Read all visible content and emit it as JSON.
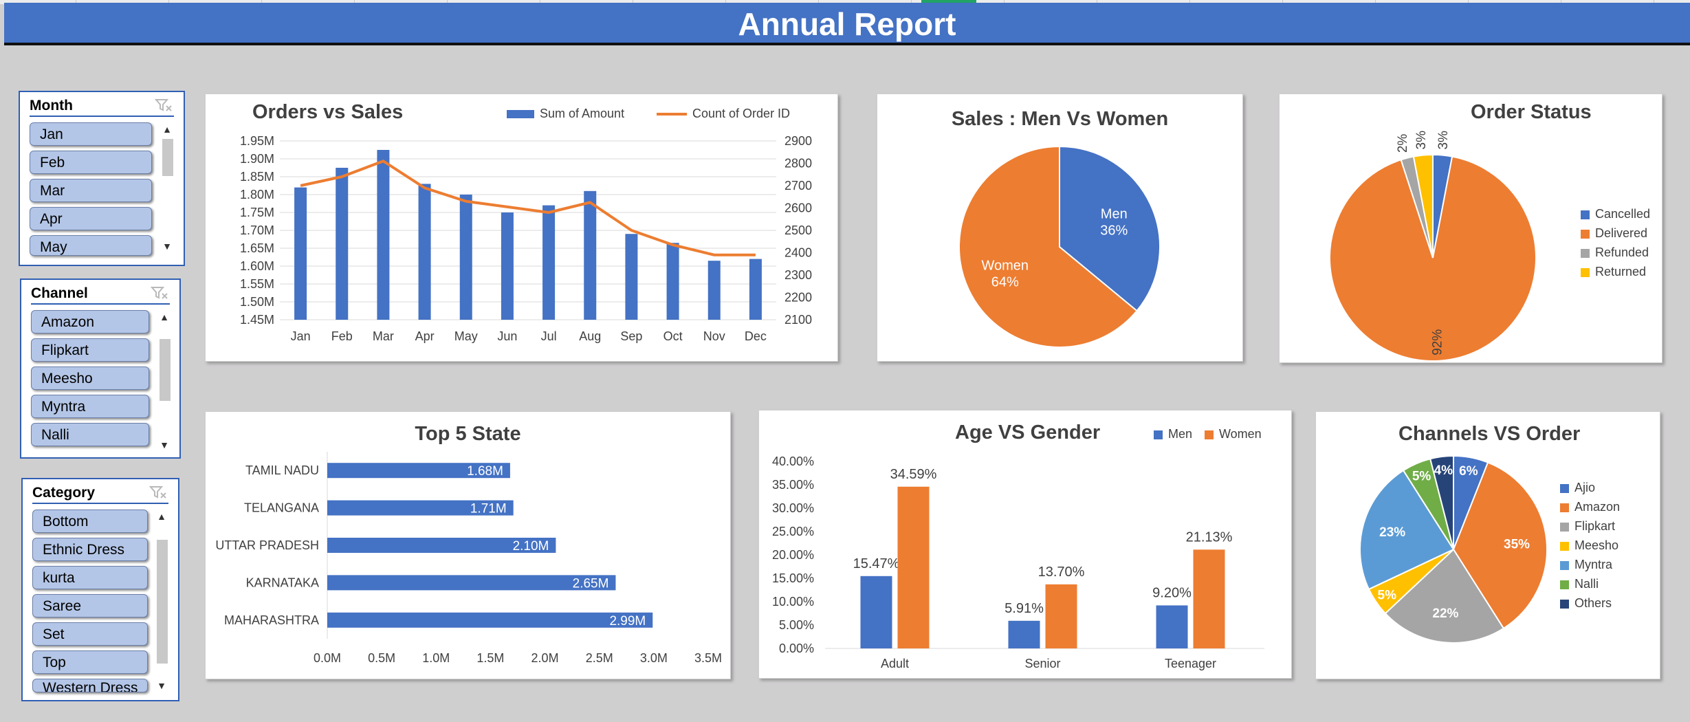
{
  "title": "Annual Report",
  "slicers": {
    "month": {
      "title": "Month",
      "items": [
        "Jan",
        "Feb",
        "Mar",
        "Apr",
        "May"
      ]
    },
    "channel": {
      "title": "Channel",
      "items": [
        "Amazon",
        "Flipkart",
        "Meesho",
        "Myntra",
        "Nalli"
      ]
    },
    "category": {
      "title": "Category",
      "items": [
        "Bottom",
        "Ethnic Dress",
        "kurta",
        "Saree",
        "Set",
        "Top",
        "Western Dress"
      ]
    }
  },
  "colors": {
    "blue": "#4472c4",
    "orange": "#ed7d31",
    "gray": "#a5a5a5",
    "gold": "#ffc000",
    "lightblue": "#5b9bd5",
    "green": "#70ad47",
    "navy": "#264478",
    "header": "#4472c4",
    "slicer_item": "#b4c6e7"
  },
  "chart_data": [
    {
      "id": "orders_vs_sales",
      "type": "bar",
      "title": "Orders vs Sales",
      "categories": [
        "Jan",
        "Feb",
        "Mar",
        "Apr",
        "May",
        "Jun",
        "Jul",
        "Aug",
        "Sep",
        "Oct",
        "Nov",
        "Dec"
      ],
      "series": [
        {
          "name": "Sum of Amount",
          "type": "bar",
          "axis": "left",
          "values": [
            1.82,
            1.875,
            1.925,
            1.83,
            1.8,
            1.75,
            1.77,
            1.81,
            1.69,
            1.665,
            1.615,
            1.62
          ]
        },
        {
          "name": "Count of Order ID",
          "type": "line",
          "axis": "right",
          "values": [
            2700,
            2740,
            2810,
            2690,
            2630,
            2605,
            2580,
            2625,
            2500,
            2435,
            2390,
            2390
          ]
        }
      ],
      "y_left": {
        "min": 1.45,
        "max": 1.95,
        "ticks": [
          "1.45M",
          "1.50M",
          "1.55M",
          "1.60M",
          "1.65M",
          "1.70M",
          "1.75M",
          "1.80M",
          "1.85M",
          "1.90M",
          "1.95M"
        ]
      },
      "y_right": {
        "min": 2100,
        "max": 2900,
        "ticks": [
          "2100",
          "2200",
          "2300",
          "2400",
          "2500",
          "2600",
          "2700",
          "2800",
          "2900"
        ]
      },
      "grid": true,
      "legend": "top-right"
    },
    {
      "id": "men_vs_women",
      "type": "pie",
      "title": "Sales : Men Vs Women",
      "slices": [
        {
          "name": "Men",
          "value": 36,
          "label": "36%"
        },
        {
          "name": "Women",
          "value": 64,
          "label": "64%"
        }
      ]
    },
    {
      "id": "order_status",
      "type": "pie",
      "title": "Order Status",
      "slices": [
        {
          "name": "Cancelled",
          "value": 3,
          "label": "3%"
        },
        {
          "name": "Delivered",
          "value": 92,
          "label": "92%"
        },
        {
          "name": "Refunded",
          "value": 2,
          "label": "2%"
        },
        {
          "name": "Returned",
          "value": 3,
          "label": "3%"
        }
      ],
      "legend": "right"
    },
    {
      "id": "top_5_state",
      "type": "bar",
      "orientation": "horizontal",
      "title": "Top 5 State",
      "categories": [
        "TAMIL NADU",
        "TELANGANA",
        "UTTAR PRADESH",
        "KARNATAKA",
        "MAHARASHTRA"
      ],
      "values": [
        1.68,
        1.71,
        2.1,
        2.65,
        2.99
      ],
      "data_labels": [
        "1.68M",
        "1.71M",
        "2.10M",
        "2.65M",
        "2.99M"
      ],
      "xlim": [
        0,
        3.5
      ],
      "x_ticks": [
        "0.0M",
        "0.5M",
        "1.0M",
        "1.5M",
        "2.0M",
        "2.5M",
        "3.0M",
        "3.5M"
      ]
    },
    {
      "id": "age_vs_gender",
      "type": "bar",
      "title": "Age VS Gender",
      "categories": [
        "Adult",
        "Senior",
        "Teenager"
      ],
      "series": [
        {
          "name": "Men",
          "values": [
            15.47,
            5.91,
            9.2
          ],
          "labels": [
            "15.47%",
            "5.91%",
            "9.20%"
          ]
        },
        {
          "name": "Women",
          "values": [
            34.59,
            13.7,
            21.13
          ],
          "labels": [
            "34.59%",
            "13.70%",
            "21.13%"
          ]
        }
      ],
      "ylim": [
        0,
        40
      ],
      "y_ticks": [
        "0.00%",
        "5.00%",
        "10.00%",
        "15.00%",
        "20.00%",
        "25.00%",
        "30.00%",
        "35.00%",
        "40.00%"
      ],
      "legend": "top-right"
    },
    {
      "id": "channels_vs_order",
      "type": "pie",
      "title": "Channels VS Order",
      "slices": [
        {
          "name": "Ajio",
          "value": 6,
          "label": "6%"
        },
        {
          "name": "Amazon",
          "value": 35,
          "label": "35%"
        },
        {
          "name": "Flipkart",
          "value": 22,
          "label": "22%"
        },
        {
          "name": "Meesho",
          "value": 5,
          "label": "5%"
        },
        {
          "name": "Myntra",
          "value": 23,
          "label": "23%"
        },
        {
          "name": "Nalli",
          "value": 5,
          "label": "5%"
        },
        {
          "name": "Others",
          "value": 4,
          "label": "4%"
        }
      ],
      "legend": "right"
    }
  ]
}
